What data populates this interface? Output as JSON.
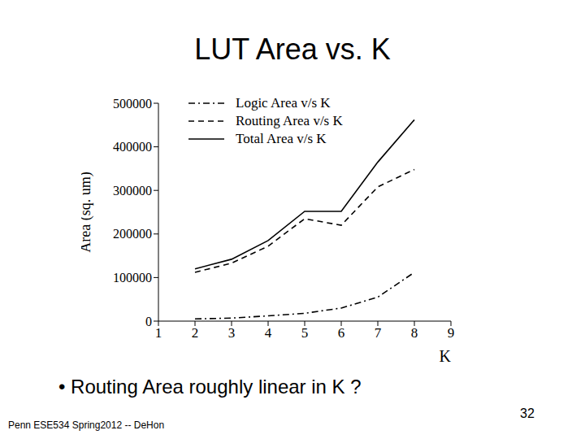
{
  "chart_data": {
    "type": "line",
    "title": "LUT Area vs. K",
    "x_label": "K",
    "y_label": "Area (sq. um)",
    "x": [
      2,
      3,
      4,
      5,
      6,
      7,
      8
    ],
    "series": [
      {
        "name": "Logic Area v/s K",
        "color": "#000000",
        "line_style": "dashdot",
        "values": [
          5000,
          7000,
          12000,
          18000,
          30000,
          55000,
          112000
        ]
      },
      {
        "name": "Routing Area v/s K",
        "color": "#000000",
        "line_style": "dashed",
        "values": [
          112000,
          133000,
          172000,
          235000,
          220000,
          308000,
          348000
        ]
      },
      {
        "name": "Total Area v/s K",
        "color": "#000000",
        "line_style": "solid",
        "values": [
          120000,
          142000,
          185000,
          252000,
          252000,
          365000,
          462000
        ]
      }
    ],
    "xlim": [
      1,
      9
    ],
    "xticks": [
      1,
      2,
      3,
      4,
      5,
      6,
      7,
      8,
      9
    ],
    "ylim": [
      0,
      500000
    ],
    "yticks": [
      0,
      100000,
      200000,
      300000,
      400000,
      500000
    ],
    "grid": false
  },
  "bullet": "• Routing Area roughly linear in K ?",
  "footer": "Penn ESE534 Spring2012 -- DeHon",
  "page": 32
}
